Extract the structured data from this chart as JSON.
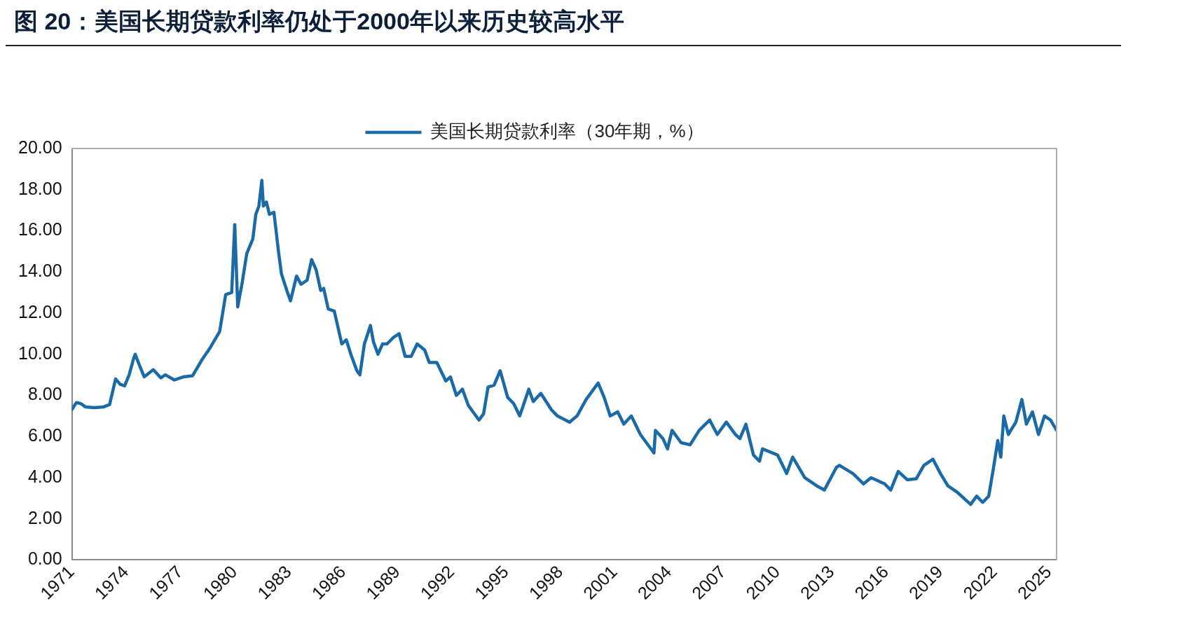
{
  "chart_data": {
    "type": "line",
    "title": "图 20：美国长期贷款利率仍处于2000年以来历史较高水平",
    "legend": "top",
    "marker": "none",
    "line_style": "solid",
    "grid": false,
    "x": [
      "1971-04",
      "1971-07",
      "1971-10",
      "1972-01",
      "1972-07",
      "1973-01",
      "1973-05",
      "1973-09",
      "1973-12",
      "1974-03",
      "1974-06",
      "1974-09",
      "1974-10",
      "1975-01",
      "1975-04",
      "1975-10",
      "1976-03",
      "1976-06",
      "1976-12",
      "1977-06",
      "1977-12",
      "1978-06",
      "1978-12",
      "1979-06",
      "1979-10",
      "1980-02",
      "1980-04",
      "1980-06",
      "1980-09",
      "1980-12",
      "1981-04",
      "1981-06",
      "1981-08",
      "1981-10",
      "1981-11",
      "1982-01",
      "1982-03",
      "1982-06",
      "1982-09",
      "1982-11",
      "1983-03",
      "1983-05",
      "1983-09",
      "1983-12",
      "1984-04",
      "1984-07",
      "1984-10",
      "1985-01",
      "1985-03",
      "1985-06",
      "1985-10",
      "1986-03",
      "1986-06",
      "1986-09",
      "1987-01",
      "1987-03",
      "1987-06",
      "1987-10",
      "1987-12",
      "1988-03",
      "1988-06",
      "1988-09",
      "1989-01",
      "1989-05",
      "1989-09",
      "1990-01",
      "1990-05",
      "1990-10",
      "1991-01",
      "1991-06",
      "1991-12",
      "1992-03",
      "1992-07",
      "1992-11",
      "1993-03",
      "1993-10",
      "1994-01",
      "1994-04",
      "1994-08",
      "1994-12",
      "1995-05",
      "1995-09",
      "1996-01",
      "1996-07",
      "1996-10",
      "1997-03",
      "1997-10",
      "1998-02",
      "1998-10",
      "1999-03",
      "1999-09",
      "2000-05",
      "2000-09",
      "2001-01",
      "2001-06",
      "2001-10",
      "2002-03",
      "2002-09",
      "2003-06",
      "2003-07",
      "2003-12",
      "2004-03",
      "2004-06",
      "2004-12",
      "2005-06",
      "2005-12",
      "2006-07",
      "2006-12",
      "2007-06",
      "2007-12",
      "2008-03",
      "2008-07",
      "2008-12",
      "2009-04",
      "2009-06",
      "2010-04",
      "2010-10",
      "2011-02",
      "2011-10",
      "2012-06",
      "2012-11",
      "2013-07",
      "2013-09",
      "2014-06",
      "2015-01",
      "2015-06",
      "2016-03",
      "2016-07",
      "2016-12",
      "2017-06",
      "2017-12",
      "2018-05",
      "2018-11",
      "2019-04",
      "2019-09",
      "2020-03",
      "2020-12",
      "2021-04",
      "2021-08",
      "2021-12",
      "2022-03",
      "2022-06",
      "2022-08",
      "2022-10",
      "2023-01",
      "2023-06",
      "2023-10",
      "2024-01",
      "2024-05",
      "2024-09",
      "2025-01",
      "2025-05",
      "2025-09"
    ],
    "series": [
      {
        "name": "美国长期贷款利率（30年期，%）",
        "color": "#1b6aa8",
        "values": [
          7.31,
          7.65,
          7.6,
          7.44,
          7.4,
          7.44,
          7.55,
          8.8,
          8.54,
          8.46,
          9.0,
          9.8,
          10.0,
          9.43,
          8.9,
          9.25,
          8.85,
          9.0,
          8.75,
          8.9,
          8.95,
          9.7,
          10.35,
          11.1,
          12.9,
          13.0,
          16.3,
          12.3,
          13.5,
          14.9,
          15.6,
          16.8,
          17.2,
          18.45,
          17.2,
          17.4,
          16.8,
          16.9,
          15.0,
          13.9,
          13.0,
          12.6,
          13.8,
          13.4,
          13.6,
          14.6,
          14.1,
          13.1,
          13.2,
          12.2,
          12.1,
          10.5,
          10.7,
          10.0,
          9.2,
          9.0,
          10.5,
          11.4,
          10.6,
          10.0,
          10.5,
          10.5,
          10.8,
          11.0,
          9.9,
          9.9,
          10.5,
          10.2,
          9.6,
          9.6,
          8.7,
          8.9,
          8.0,
          8.3,
          7.5,
          6.8,
          7.1,
          8.4,
          8.5,
          9.2,
          7.9,
          7.6,
          7.0,
          8.3,
          7.7,
          8.1,
          7.3,
          7.0,
          6.7,
          7.0,
          7.8,
          8.6,
          7.9,
          7.0,
          7.2,
          6.6,
          7.0,
          6.1,
          5.2,
          6.3,
          5.9,
          5.4,
          6.3,
          5.7,
          5.6,
          6.3,
          6.8,
          6.1,
          6.7,
          6.1,
          5.9,
          6.6,
          5.1,
          4.8,
          5.4,
          5.1,
          4.2,
          5.0,
          4.0,
          3.6,
          3.4,
          4.5,
          4.6,
          4.2,
          3.7,
          4.0,
          3.7,
          3.4,
          4.3,
          3.9,
          3.95,
          4.6,
          4.9,
          4.2,
          3.6,
          3.3,
          2.7,
          3.1,
          2.8,
          3.1,
          4.4,
          5.8,
          5.0,
          7.0,
          6.1,
          6.7,
          7.8,
          6.6,
          7.2,
          6.1,
          7.0,
          6.8,
          6.3
        ]
      }
    ],
    "xlim": [
      "1971-04",
      "2025-09"
    ],
    "xticks": [
      {
        "value": "1971-04",
        "label": "1971"
      },
      {
        "value": "1974-04",
        "label": "1974"
      },
      {
        "value": "1977-04",
        "label": "1977"
      },
      {
        "value": "1980-04",
        "label": "1980"
      },
      {
        "value": "1983-04",
        "label": "1983"
      },
      {
        "value": "1986-04",
        "label": "1986"
      },
      {
        "value": "1989-04",
        "label": "1989"
      },
      {
        "value": "1992-04",
        "label": "1992"
      },
      {
        "value": "1995-04",
        "label": "1995"
      },
      {
        "value": "1998-04",
        "label": "1998"
      },
      {
        "value": "2001-04",
        "label": "2001"
      },
      {
        "value": "2004-04",
        "label": "2004"
      },
      {
        "value": "2007-04",
        "label": "2007"
      },
      {
        "value": "2010-04",
        "label": "2010"
      },
      {
        "value": "2013-04",
        "label": "2013"
      },
      {
        "value": "2016-04",
        "label": "2016"
      },
      {
        "value": "2019-04",
        "label": "2019"
      },
      {
        "value": "2022-04",
        "label": "2022"
      },
      {
        "value": "2025-04",
        "label": "2025"
      }
    ],
    "ylim": [
      0,
      20
    ],
    "yticks": [
      {
        "value": 0,
        "label": "0.00"
      },
      {
        "value": 2,
        "label": "2.00"
      },
      {
        "value": 4,
        "label": "4.00"
      },
      {
        "value": 6,
        "label": "6.00"
      },
      {
        "value": 8,
        "label": "8.00"
      },
      {
        "value": 10,
        "label": "10.00"
      },
      {
        "value": 12,
        "label": "12.00"
      },
      {
        "value": 14,
        "label": "14.00"
      },
      {
        "value": 16,
        "label": "16.00"
      },
      {
        "value": 18,
        "label": "18.00"
      },
      {
        "value": 20,
        "label": "20.00"
      }
    ]
  }
}
